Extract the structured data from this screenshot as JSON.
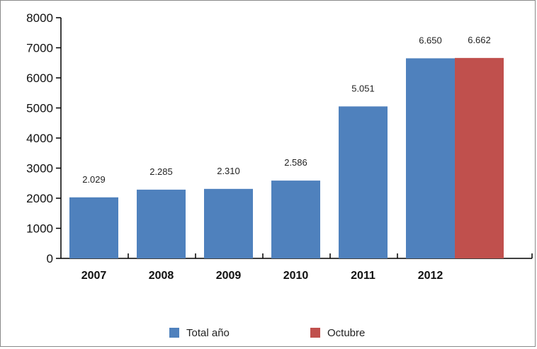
{
  "chart_data": {
    "type": "bar",
    "categories": [
      "2007",
      "2008",
      "2009",
      "2010",
      "2011",
      "2012"
    ],
    "series": [
      {
        "name": "Total año",
        "color": "#4f81bd",
        "values": [
          2029,
          2285,
          2310,
          2586,
          5051,
          6650
        ]
      },
      {
        "name": "Octubre",
        "color": "#c0504d",
        "values": [
          null,
          null,
          null,
          null,
          null,
          6662
        ]
      }
    ],
    "data_labels": {
      "Total año": [
        "2.029",
        "2.285",
        "2.310",
        "2.586",
        "5.051",
        "6.650"
      ],
      "Octubre": [
        "",
        "",
        "",
        "",
        "",
        "6.662"
      ]
    },
    "yticks": [
      0,
      1000,
      2000,
      3000,
      4000,
      5000,
      6000,
      7000,
      8000
    ],
    "ylim": [
      0,
      8000
    ],
    "title": "",
    "xlabel": "",
    "ylabel": "",
    "grid": false,
    "legend_position": "bottom-center"
  }
}
